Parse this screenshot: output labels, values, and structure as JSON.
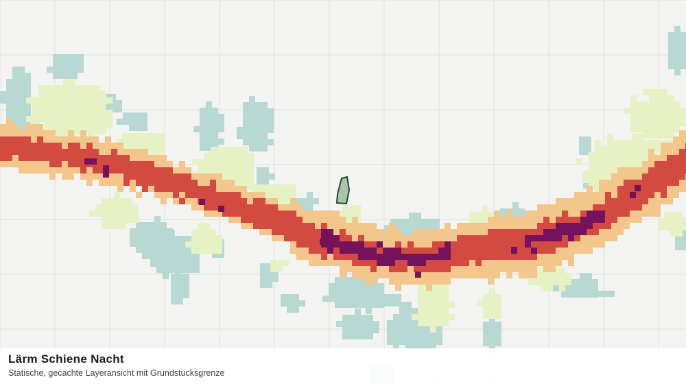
{
  "map": {
    "title": "Lärm Schiene Nacht",
    "subtitle": "Statische, gecachte Layeransicht mit Grundstücksgrenze",
    "colors": {
      "background": "#f3f4f1",
      "grid": "#dedfdc",
      "teal": "#b8d8d4",
      "light_green": "#e6f1c4",
      "orange": "#f3c68c",
      "red": "#d34b40",
      "purple": "#74125b",
      "parcel_fill": "#a9c4ad",
      "parcel_stroke": "#1e4d2b"
    },
    "layers": [
      "teal",
      "light_green",
      "orange",
      "red",
      "purple"
    ]
  }
}
